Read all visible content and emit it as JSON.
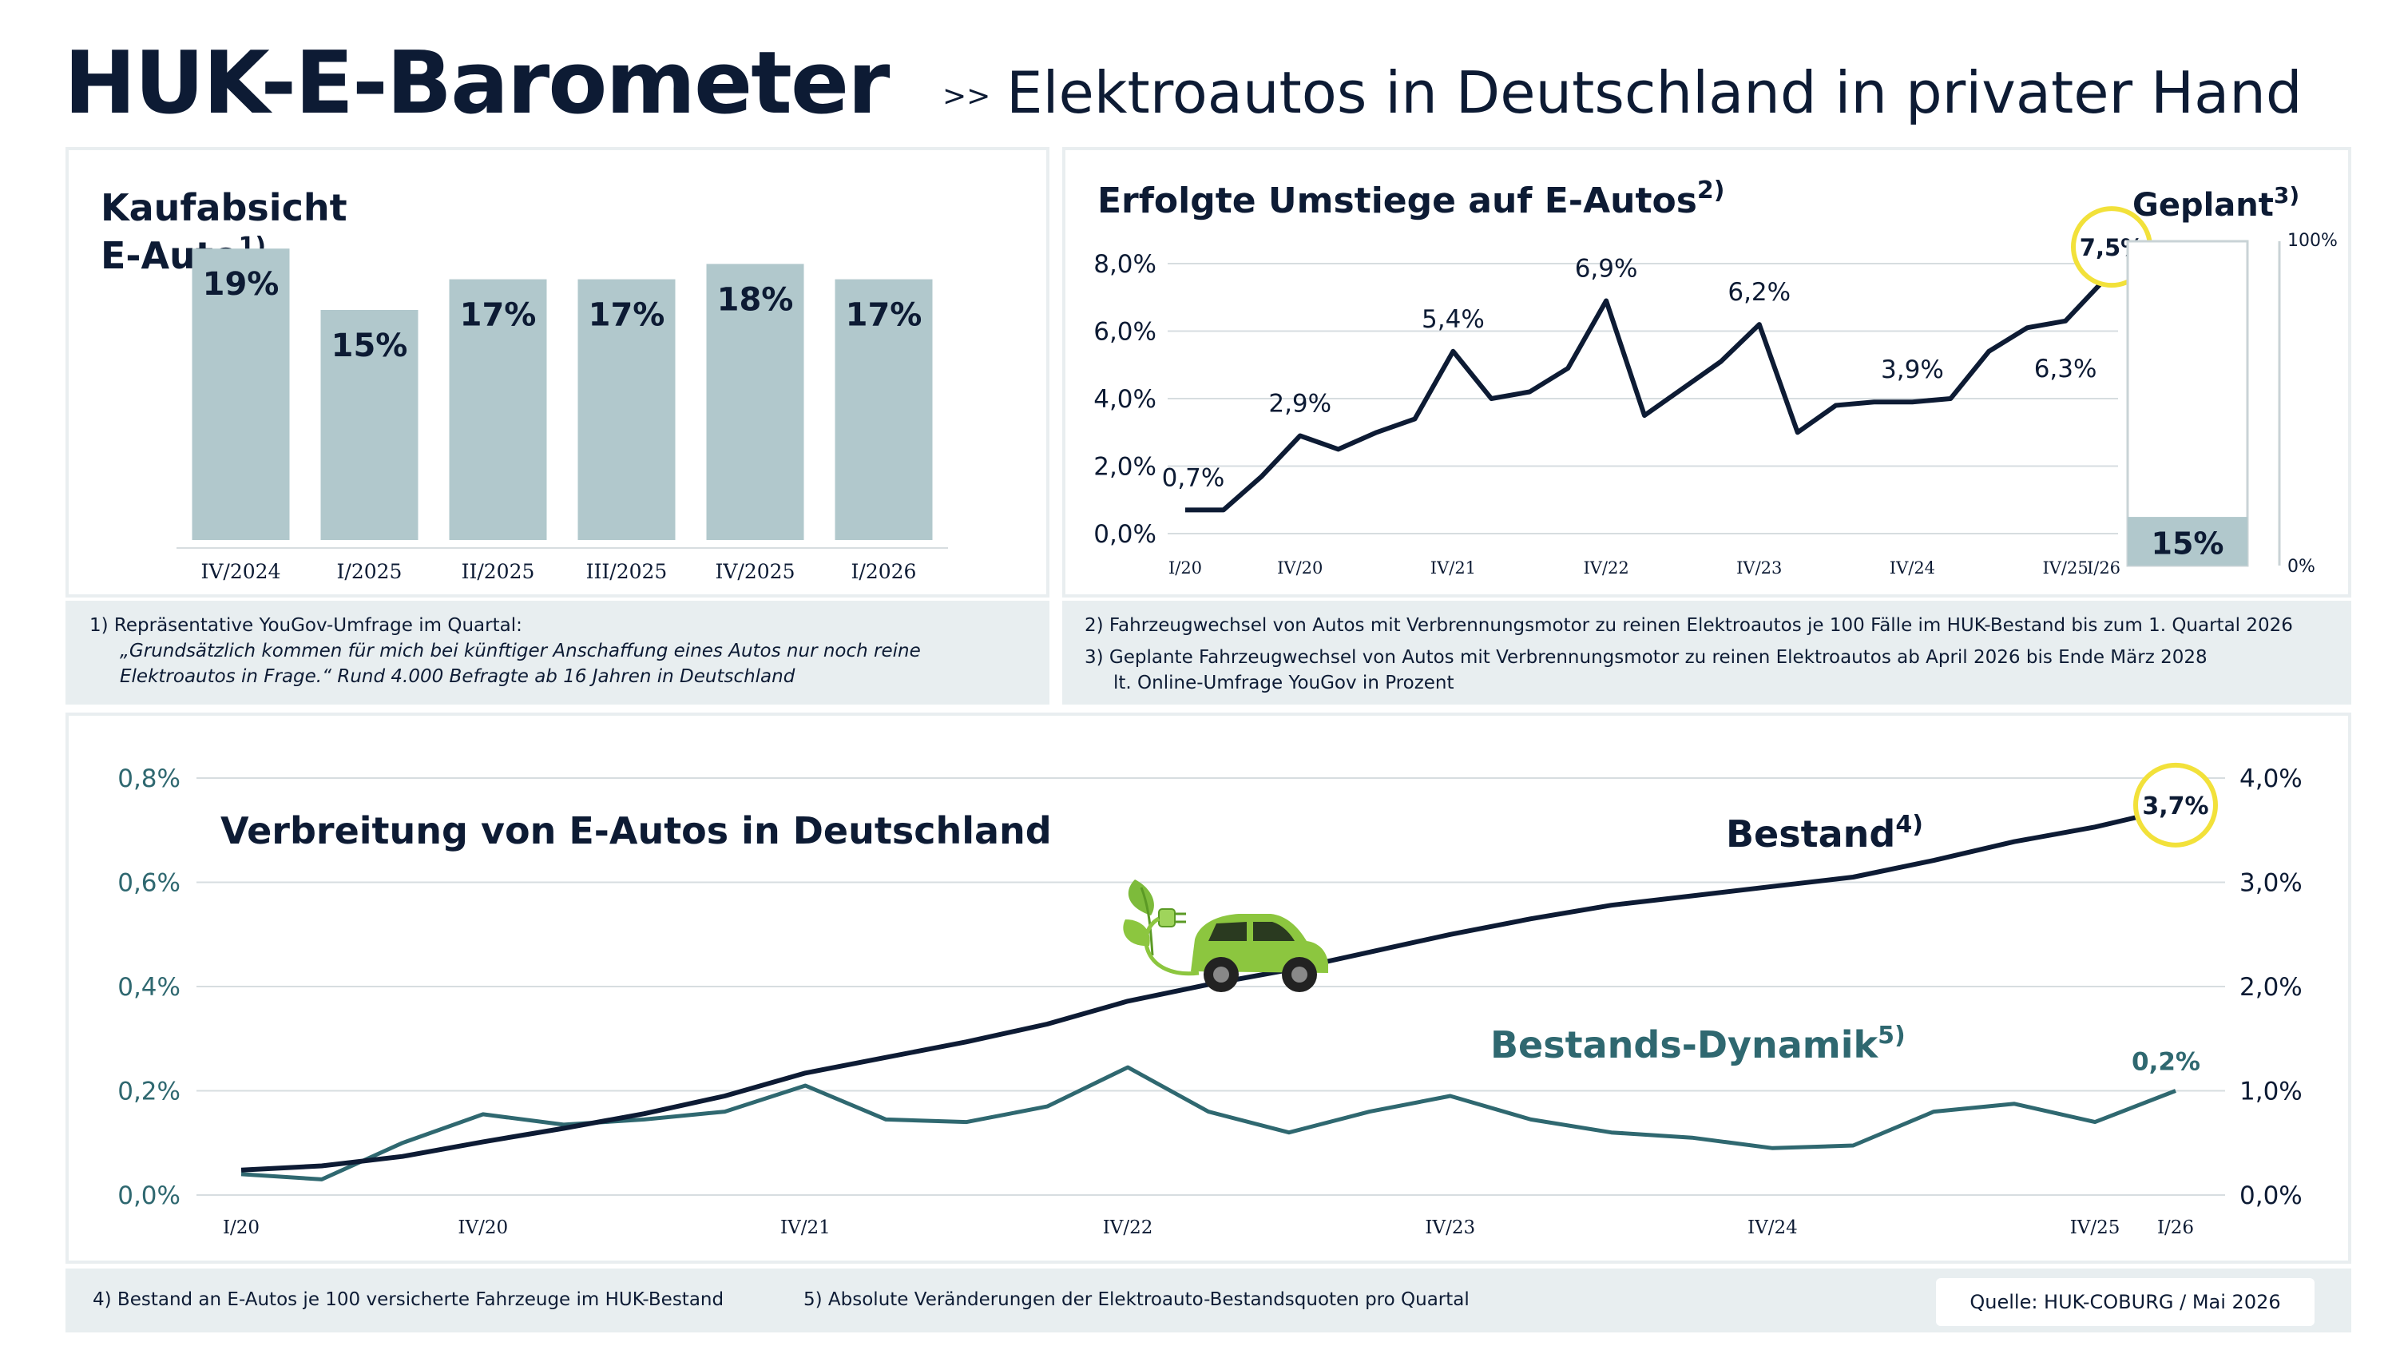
{
  "header": {
    "brand": "HUK-E-Barometer",
    "separator": ">>",
    "subtitle": "Elektroautos in Deutschland in privater Hand"
  },
  "colors": {
    "navy": "#0d1b34",
    "bar": "#b1c8cc",
    "teal": "#2f6870",
    "highlight": "#f2e13a",
    "grid": "#d7dde0",
    "panel_border": "#e9eef0",
    "note_bg": "#e8eef0",
    "car_green": "#8cc63f"
  },
  "icons": [
    "electric-car-icon",
    "plug-cable-icon",
    "leaf-icon"
  ],
  "notes": {
    "kauf": {
      "line1": "1)  Repräsentative YouGov-Umfrage im Quartal:",
      "line2": "„Grundsätzlich kommen für mich bei künftiger Anschaffung eines Autos nur noch reine",
      "line3": "Elektroautos in Frage.“ Rund 4.000 Befragte ab 16 Jahren in Deutschland"
    },
    "umstieg": {
      "line1": "2)  Fahrzeugwechsel von Autos mit Verbrennungsmotor zu reinen Elektroautos je 100 Fälle im HUK-Bestand bis zum 1. Quartal 2026",
      "line2": "3)  Geplante Fahrzeugwechsel von Autos mit Verbrennungsmotor zu reinen Elektroautos ab April 2026 bis Ende März 2028",
      "line3": "lt. Online-Umfrage YouGov in Prozent"
    },
    "bottom": {
      "note4": "4) Bestand an E-Autos je 100 versicherte Fahrzeuge im HUK-Bestand",
      "note5": "5) Absolute Veränderungen der Elektroauto-Bestandsquoten pro Quartal"
    },
    "source": "Quelle: HUK-COBURG / Mai 2026"
  },
  "chart_data": [
    {
      "id": "kaufabsicht",
      "type": "bar",
      "title": "Kaufabsicht",
      "title_line2": "E-Auto",
      "title_footnote": "1)",
      "categories": [
        "IV/2024",
        "I/2025",
        "II/2025",
        "III/2025",
        "IV/2025",
        "I/2026"
      ],
      "values": [
        19,
        15,
        17,
        17,
        18,
        17
      ],
      "labels": [
        "19%",
        "15%",
        "17%",
        "17%",
        "18%",
        "17%"
      ],
      "unit": "%",
      "ylim": [
        0,
        20
      ],
      "grid": false
    },
    {
      "id": "umstiege",
      "type": "line",
      "title": "Erfolgte Umstiege auf E-Autos",
      "title_footnote": "2)",
      "x": [
        "I/20",
        "II/20",
        "III/20",
        "IV/20",
        "I/21",
        "II/21",
        "III/21",
        "IV/21",
        "I/22",
        "II/22",
        "III/22",
        "IV/22",
        "I/23",
        "II/23",
        "III/23",
        "IV/23",
        "I/24",
        "II/24",
        "III/24",
        "IV/24",
        "I/25",
        "II/25",
        "III/25",
        "IV/25",
        "I/26"
      ],
      "values": [
        0.7,
        0.7,
        1.7,
        2.9,
        2.5,
        3.0,
        3.4,
        5.4,
        4.0,
        4.2,
        4.9,
        6.9,
        3.5,
        4.3,
        5.1,
        6.2,
        3.0,
        3.8,
        3.9,
        3.9,
        4.0,
        5.4,
        6.1,
        6.3,
        7.5
      ],
      "tick_labels": [
        "I/20",
        "IV/20",
        "IV/21",
        "IV/22",
        "IV/23",
        "IV/24",
        "IV/25",
        "I/26"
      ],
      "data_labels": [
        {
          "x": "I/20",
          "text": "0,7%"
        },
        {
          "x": "IV/20",
          "text": "2,9%"
        },
        {
          "x": "IV/21",
          "text": "5,4%"
        },
        {
          "x": "IV/22",
          "text": "6,9%"
        },
        {
          "x": "IV/23",
          "text": "6,2%"
        },
        {
          "x": "IV/24",
          "text": "3,9%"
        },
        {
          "x": "IV/25",
          "text": "6,3%"
        },
        {
          "x": "I/26",
          "text": "7,5%",
          "highlight": true
        }
      ],
      "yticks": [
        "0,0%",
        "2,0%",
        "4,0%",
        "6,0%",
        "8,0%"
      ],
      "ylim": [
        0,
        8
      ],
      "grid": true
    },
    {
      "id": "geplant",
      "type": "bar",
      "title": "Geplant",
      "title_footnote": "3)",
      "values": [
        15
      ],
      "labels": [
        "15%"
      ],
      "ylim": [
        0,
        100
      ],
      "ytick_top": "100%",
      "ytick_bottom": "0%"
    },
    {
      "id": "verbreitung",
      "type": "line",
      "title": "Verbreitung von E-Autos in Deutschland",
      "x": [
        "I/20",
        "II/20",
        "III/20",
        "IV/20",
        "I/21",
        "II/21",
        "III/21",
        "IV/21",
        "I/22",
        "II/22",
        "III/22",
        "IV/22",
        "I/23",
        "II/23",
        "III/23",
        "IV/23",
        "I/24",
        "II/24",
        "III/24",
        "IV/24",
        "I/25",
        "II/25",
        "III/25",
        "IV/25",
        "I/26"
      ],
      "tick_labels": [
        "I/20",
        "IV/20",
        "IV/21",
        "IV/22",
        "IV/23",
        "IV/24",
        "IV/25",
        "I/26"
      ],
      "series": [
        {
          "name": "Bestand",
          "footnote": "4)",
          "axis": "right",
          "values": [
            0.24,
            0.28,
            0.37,
            0.51,
            0.64,
            0.78,
            0.95,
            1.17,
            1.32,
            1.47,
            1.64,
            1.86,
            2.02,
            2.16,
            2.33,
            2.5,
            2.65,
            2.78,
            2.87,
            2.96,
            3.05,
            3.21,
            3.39,
            3.53,
            3.71
          ],
          "end_label": "3,7%"
        },
        {
          "name": "Bestands-Dynamik",
          "footnote": "5)",
          "axis": "left",
          "values": [
            0.04,
            0.03,
            0.1,
            0.155,
            0.135,
            0.145,
            0.16,
            0.21,
            0.145,
            0.14,
            0.17,
            0.245,
            0.16,
            0.12,
            0.16,
            0.19,
            0.145,
            0.12,
            0.11,
            0.09,
            0.095,
            0.16,
            0.175,
            0.14,
            0.2
          ],
          "end_label": "0,2%"
        }
      ],
      "yticks_left": [
        "0,0%",
        "0,2%",
        "0,4%",
        "0,6%",
        "0,8%"
      ],
      "ylim_left": [
        0,
        0.8
      ],
      "yticks_right": [
        "0,0%",
        "1,0%",
        "2,0%",
        "3,0%",
        "4,0%"
      ],
      "ylim_right": [
        0,
        4
      ],
      "grid": true
    }
  ]
}
